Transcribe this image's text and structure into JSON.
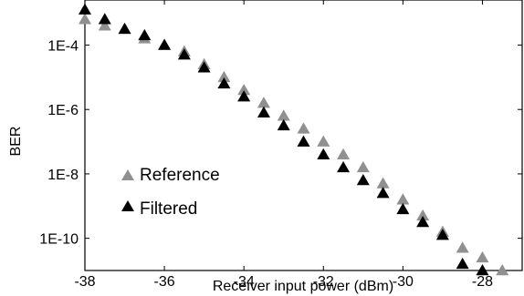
{
  "chart_data": {
    "type": "scatter",
    "title": "",
    "xlabel": "Receiver input power (dBm)",
    "ylabel": "BER",
    "xlim": [
      -38,
      -27
    ],
    "ylim_log10": [
      -11,
      -2.6
    ],
    "y_scale": "log",
    "grid": false,
    "legend_position": "left",
    "x_ticks": [
      -38,
      -36,
      -34,
      -32,
      -30,
      -28
    ],
    "x_tick_labels": [
      "-38",
      "-36",
      "-34",
      "-32",
      "-30",
      "-28"
    ],
    "y_ticks_log10": [
      -4,
      -6,
      -8,
      -10
    ],
    "y_tick_labels": [
      "1E-4",
      "1E-6",
      "1E-8",
      "1E-10"
    ],
    "marker": "triangle-up",
    "series": [
      {
        "name": "Reference",
        "color": "#909090",
        "x": [
          -38,
          -37.5,
          -37,
          -36.5,
          -36,
          -35.5,
          -35,
          -34.5,
          -34,
          -33.5,
          -33,
          -32.5,
          -32,
          -31.5,
          -31,
          -30.5,
          -30,
          -29.5,
          -29,
          -28.5,
          -28,
          -27.5
        ],
        "log10_y": [
          -3.2,
          -3.4,
          -3.5,
          -3.8,
          -4.0,
          -4.2,
          -4.6,
          -5.0,
          -5.4,
          -5.8,
          -6.2,
          -6.6,
          -7.0,
          -7.4,
          -7.8,
          -8.3,
          -8.8,
          -9.3,
          -9.8,
          -10.3,
          -10.6,
          -11.0
        ]
      },
      {
        "name": "Filtered",
        "color": "#000000",
        "x": [
          -38,
          -37.5,
          -37,
          -36.5,
          -36,
          -35.5,
          -35,
          -34.5,
          -34,
          -33.5,
          -33,
          -32.5,
          -32,
          -31.5,
          -31,
          -30.5,
          -30,
          -29.5,
          -29,
          -28.5,
          -28
        ],
        "log10_y": [
          -2.9,
          -3.2,
          -3.5,
          -3.7,
          -4.0,
          -4.3,
          -4.7,
          -5.2,
          -5.6,
          -6.1,
          -6.5,
          -7.0,
          -7.4,
          -7.8,
          -8.2,
          -8.6,
          -9.1,
          -9.5,
          -9.9,
          -10.8,
          -11.0
        ]
      }
    ]
  }
}
